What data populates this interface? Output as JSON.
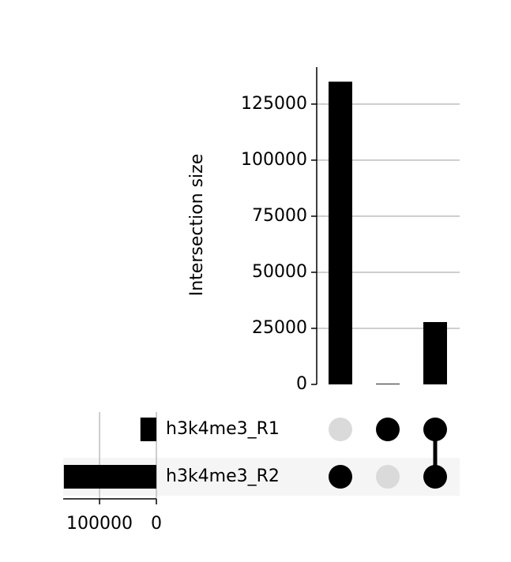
{
  "chart_data": {
    "type": "upset",
    "ylabel": "Intersection size",
    "sets": [
      "h3k4me3_R1",
      "h3k4me3_R2"
    ],
    "set_sizes": [
      28100,
      162800
    ],
    "intersections": [
      [
        0,
        1
      ],
      [
        1,
        0
      ],
      [
        1,
        1
      ]
    ],
    "values": [
      135000,
      300,
      27800
    ],
    "color": "#000000",
    "inactive_color": "#dadada",
    "ylim": [
      0,
      141500
    ],
    "yticks": [
      0,
      25000,
      50000,
      75000,
      100000,
      125000
    ],
    "set_xlim": [
      164000,
      0
    ],
    "set_xticks": [
      100000,
      0
    ],
    "grid": true
  }
}
